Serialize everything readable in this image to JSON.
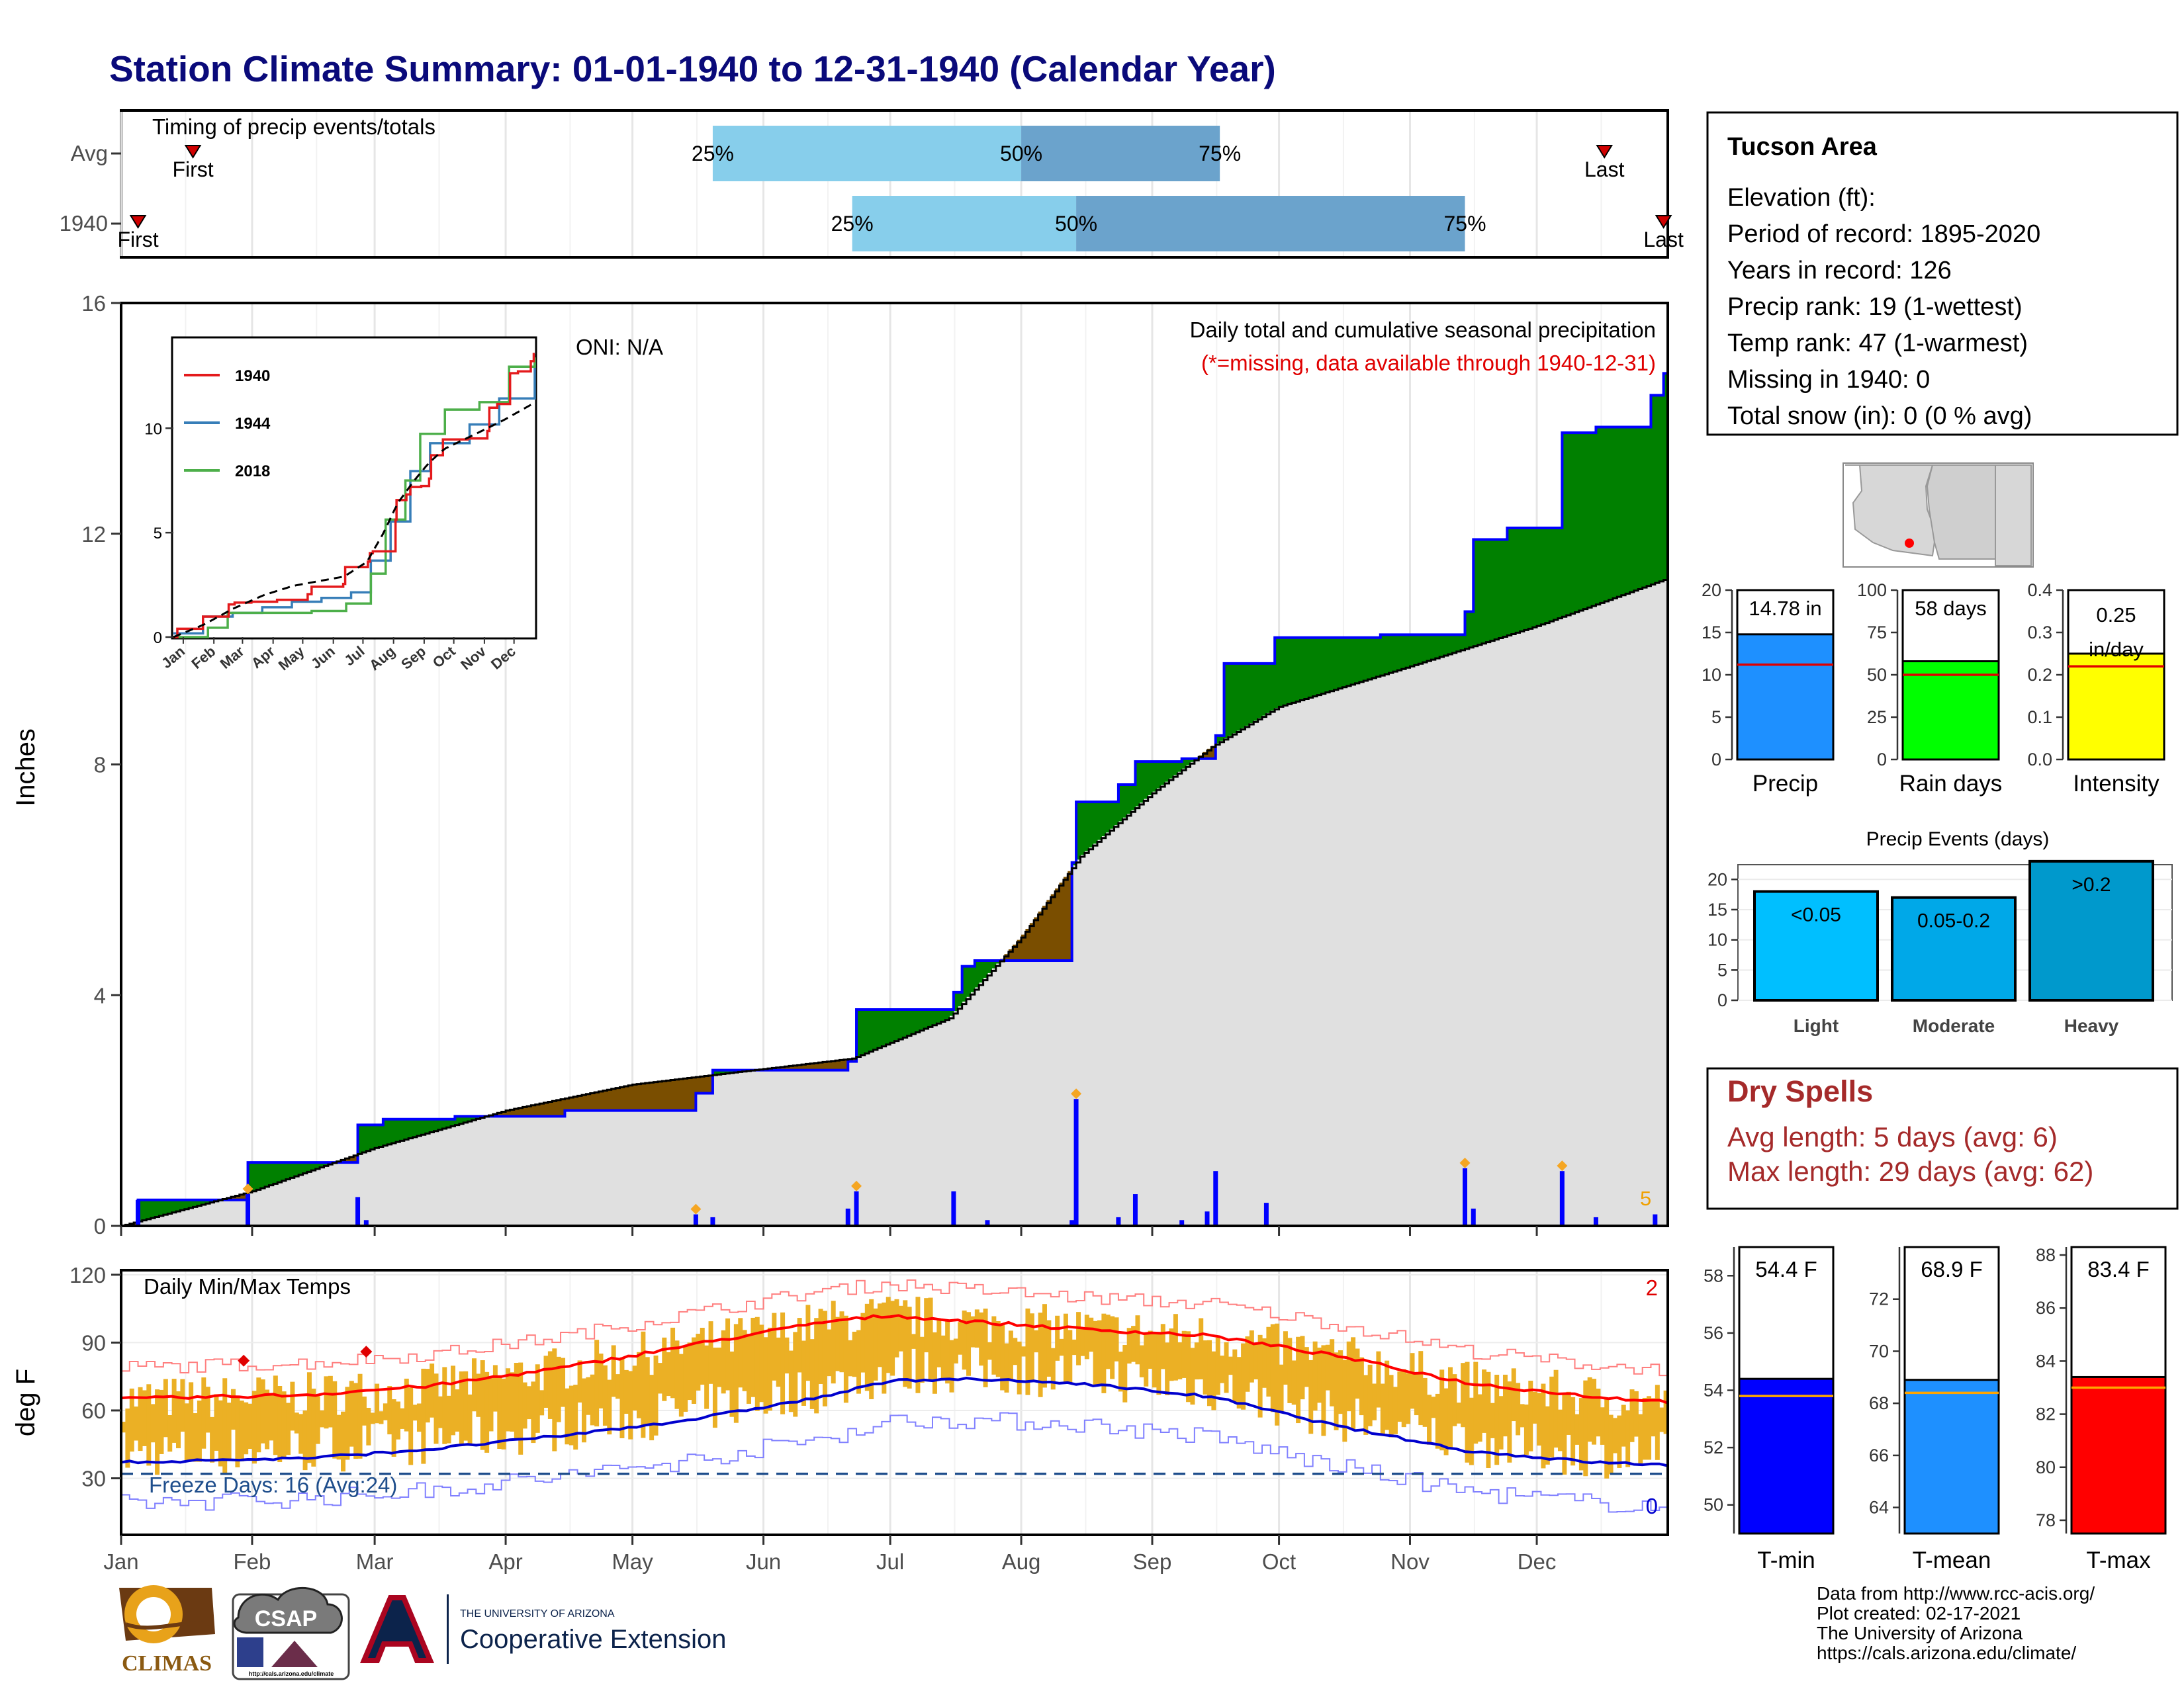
{
  "title": "Station Climate Summary: 01-01-1940 to 12-31-1940 (Calendar Year)",
  "colors": {
    "title": "#0a0a7a",
    "bar_light": "#87ceeb",
    "bar_dark": "#6ba3cc",
    "surplus": "#008000",
    "deficit": "#7a4e00",
    "normal_fill": "#e0e0e0",
    "cumulative_line": "#0000ff",
    "daily_bar": "#0000ff",
    "temp_bar": "#ebb025",
    "tmax_line": "#ff0000",
    "tmin_line": "#0000cd",
    "dry_spells": "#a52a2a"
  },
  "timing": {
    "title": "Timing of precip events/totals",
    "rows": [
      {
        "label": "Avg",
        "first_label": "First",
        "last_label": "Last",
        "first_date": "1940-01-18",
        "last_date": "1940-12-17",
        "q25_label": "25%",
        "q50_label": "50%",
        "q75_label": "75%",
        "q25_date": "1940-05-20",
        "q50_date": "1940-08-01",
        "q75_date": "1940-09-17"
      },
      {
        "label": "1940",
        "first_label": "First",
        "last_label": "Last",
        "first_date": "1940-01-05",
        "last_date": "1940-12-31",
        "q25_label": "25%",
        "q50_label": "50%",
        "q75_label": "75%",
        "q25_date": "1940-06-22",
        "q50_date": "1940-08-14",
        "q75_date": "1940-11-14"
      }
    ]
  },
  "precip_panel": {
    "ylabel": "Inches",
    "oni": "ONI: N/A",
    "note": "Daily total and cumulative seasonal precipitation",
    "missing_note": "(*=missing, data available through 1940-12-31)",
    "missing_count": "5",
    "yticks": [
      "0",
      "4",
      "8",
      "12",
      "16"
    ]
  },
  "months": [
    "Jan",
    "Feb",
    "Mar",
    "Apr",
    "May",
    "Jun",
    "Jul",
    "Aug",
    "Sep",
    "Oct",
    "Nov",
    "Dec"
  ],
  "inset": {
    "xticks": [
      "Jan",
      "Feb",
      "Mar",
      "Apr",
      "May",
      "Jun",
      "Jul",
      "Aug",
      "Sep",
      "Oct",
      "Nov",
      "Dec"
    ],
    "yticks": [
      "0",
      "5",
      "10"
    ],
    "legend": [
      {
        "name": "1940",
        "color": "#e41a1c"
      },
      {
        "name": "1944",
        "color": "#377eb8"
      },
      {
        "name": "2018",
        "color": "#4daf4a"
      }
    ]
  },
  "temp_panel": {
    "ylabel": "deg F",
    "title": "Daily Min/Max Temps",
    "freeze": "Freeze Days: 16 (Avg:24)",
    "record_high_count": "2",
    "record_low_count": "0",
    "yticks": [
      "30",
      "60",
      "90",
      "120"
    ]
  },
  "info": {
    "station": "Tucson Area",
    "lines": [
      "Elevation (ft):",
      "Period of record: 1895-2020",
      "Years in record: 126",
      "Precip rank: 19 (1-wettest)",
      "Temp rank: 47 (1-warmest)",
      "Missing in 1940: 0",
      "Total snow (in): 0 (0 % avg)"
    ]
  },
  "mini_bars": [
    {
      "label": "Precip",
      "value_label": "14.78 in",
      "value": 14.78,
      "avg": 11.2,
      "ymax": 20,
      "ticks": [
        "0",
        "5",
        "10",
        "15",
        "20"
      ],
      "color": "#1e90ff"
    },
    {
      "label": "Rain days",
      "value_label": "58 days",
      "value": 58,
      "avg": 50,
      "ymax": 100,
      "ticks": [
        "0",
        "25",
        "50",
        "75",
        "100"
      ],
      "color": "#00ff00"
    },
    {
      "label": "Intensity",
      "value_label": "0.25 in/day",
      "value_line1": "0.25",
      "value_line2": "in/day",
      "value": 0.25,
      "avg": 0.22,
      "ymax": 0.4,
      "ticks": [
        "0.0",
        "0.1",
        "0.2",
        "0.3",
        "0.4"
      ],
      "color": "#ffff00"
    }
  ],
  "events": {
    "title": "Precip Events (days)",
    "ticks": [
      "0",
      "5",
      "10",
      "15",
      "20"
    ],
    "bars": [
      {
        "category": "Light",
        "label": "<0.05",
        "value": 18,
        "color": "#00bfff"
      },
      {
        "category": "Moderate",
        "label": "0.05-0.2",
        "value": 17,
        "color": "#00a8e8"
      },
      {
        "category": "Heavy",
        "label": ">0.2",
        "value": 23,
        "color": "#0099cc"
      }
    ]
  },
  "dry_spells": {
    "title": "Dry Spells",
    "line1": "Avg length: 5 days (avg: 6)",
    "line2": "Max length: 29 days (avg: 62)"
  },
  "temp_bars": [
    {
      "label": "T-min",
      "value_label": "54.4 F",
      "value": 54.4,
      "avg": 53.8,
      "ymin": 49,
      "ymax": 59,
      "ticks": [
        "50",
        "52",
        "54",
        "56",
        "58"
      ],
      "color": "#0000ff"
    },
    {
      "label": "T-mean",
      "value_label": "68.9 F",
      "value": 68.9,
      "avg": 68.4,
      "ymin": 63,
      "ymax": 74,
      "ticks": [
        "64",
        "66",
        "68",
        "70",
        "72"
      ],
      "color": "#1e90ff"
    },
    {
      "label": "T-max",
      "value_label": "83.4 F",
      "value": 83.4,
      "avg": 83.0,
      "ymin": 77.5,
      "ymax": 88.3,
      "ticks": [
        "78",
        "80",
        "82",
        "84",
        "86",
        "88"
      ],
      "color": "#ff0000"
    }
  ],
  "logos": {
    "climas": "CLIMAS",
    "csap": "CSAP",
    "csap_url": "http://cals.arizona.edu/climate",
    "ua_small": "THE UNIVERSITY OF ARIZONA",
    "ua_big": "Cooperative Extension"
  },
  "credits": [
    "Data from http://www.rcc-acis.org/",
    "Plot created: 02-17-2021",
    "The University of Arizona",
    "https://cals.arizona.edu/climate/"
  ],
  "chart_data": [
    {
      "type": "line",
      "title": "Daily total and cumulative seasonal precipitation",
      "ylabel": "Inches",
      "ylim": [
        0,
        16
      ],
      "series": [
        {
          "name": "1940",
          "x": [
            "1940-01-01",
            "1940-01-05",
            "1940-01-31",
            "1940-02-26",
            "1940-03-03",
            "1940-03-20",
            "1940-04-15",
            "1940-05-16",
            "1940-05-20",
            "1940-06-21",
            "1940-06-23",
            "1940-07-16",
            "1940-07-18",
            "1940-07-21",
            "1940-08-13",
            "1940-08-14",
            "1940-08-24",
            "1940-08-28",
            "1940-09-08",
            "1940-09-16",
            "1940-09-18",
            "1940-09-30",
            "1940-10-25",
            "1940-11-14",
            "1940-11-16",
            "1940-11-24",
            "1940-12-07",
            "1940-12-15",
            "1940-12-28",
            "1940-12-31"
          ],
          "values": [
            0,
            0.45,
            1.1,
            1.75,
            1.85,
            1.9,
            2.0,
            2.3,
            2.7,
            2.85,
            3.75,
            4.05,
            4.5,
            4.6,
            6.3,
            7.35,
            7.65,
            8.05,
            8.1,
            8.5,
            9.75,
            10.2,
            10.25,
            10.65,
            11.9,
            12.1,
            13.75,
            13.85,
            14.4,
            14.78
          ]
        },
        {
          "name": "Normal (cumulative)",
          "x": [
            "1940-01-01",
            "1940-02-01",
            "1940-03-01",
            "1940-04-01",
            "1940-05-01",
            "1940-06-01",
            "1940-06-22",
            "1940-07-15",
            "1940-08-01",
            "1940-08-15",
            "1940-09-01",
            "1940-09-15",
            "1940-10-01",
            "1940-11-01",
            "1940-12-01",
            "1940-12-31"
          ],
          "values": [
            0,
            0.6,
            1.35,
            2.0,
            2.45,
            2.72,
            2.9,
            3.6,
            5.0,
            6.4,
            7.5,
            8.3,
            9.0,
            9.7,
            10.4,
            11.2
          ]
        }
      ],
      "daily_totals": [
        {
          "date": "1940-01-05",
          "value": 0.45
        },
        {
          "date": "1940-01-31",
          "value": 0.55
        },
        {
          "date": "1940-02-26",
          "value": 0.5
        },
        {
          "date": "1940-02-28",
          "value": 0.1
        },
        {
          "date": "1940-05-16",
          "value": 0.2
        },
        {
          "date": "1940-05-20",
          "value": 0.15
        },
        {
          "date": "1940-06-21",
          "value": 0.3
        },
        {
          "date": "1940-06-23",
          "value": 0.6
        },
        {
          "date": "1940-07-16",
          "value": 0.6
        },
        {
          "date": "1940-07-24",
          "value": 0.1
        },
        {
          "date": "1940-08-13",
          "value": 0.1
        },
        {
          "date": "1940-08-14",
          "value": 2.2
        },
        {
          "date": "1940-08-24",
          "value": 0.15
        },
        {
          "date": "1940-08-28",
          "value": 0.55
        },
        {
          "date": "1940-09-08",
          "value": 0.1
        },
        {
          "date": "1940-09-14",
          "value": 0.25
        },
        {
          "date": "1940-09-16",
          "value": 0.95
        },
        {
          "date": "1940-09-28",
          "value": 0.4
        },
        {
          "date": "1940-11-14",
          "value": 1.0
        },
        {
          "date": "1940-11-16",
          "value": 0.3
        },
        {
          "date": "1940-12-07",
          "value": 0.95
        },
        {
          "date": "1940-12-15",
          "value": 0.15
        },
        {
          "date": "1940-12-29",
          "value": 0.2
        }
      ]
    },
    {
      "type": "line",
      "title": "Daily Min/Max Temps",
      "ylabel": "deg F",
      "ylim": [
        5,
        122
      ],
      "series": [
        {
          "name": "Avg max",
          "x": [
            "1940-01-01",
            "1940-02-15",
            "1940-03-15",
            "1940-04-15",
            "1940-05-15",
            "1940-06-15",
            "1940-07-01",
            "1940-07-15",
            "1940-08-15",
            "1940-09-15",
            "1940-10-15",
            "1940-11-15",
            "1940-12-15",
            "1940-12-31"
          ],
          "values": [
            65,
            67,
            71,
            79,
            89,
            99,
            102,
            100,
            96,
            93,
            84,
            72,
            66,
            64
          ]
        },
        {
          "name": "Avg min",
          "x": [
            "1940-01-01",
            "1940-02-15",
            "1940-03-15",
            "1940-04-15",
            "1940-05-15",
            "1940-06-15",
            "1940-07-01",
            "1940-07-15",
            "1940-08-15",
            "1940-09-15",
            "1940-10-15",
            "1940-11-15",
            "1940-12-15",
            "1940-12-31"
          ],
          "values": [
            37,
            39,
            43,
            49,
            56,
            66,
            73,
            74,
            72,
            66,
            53,
            42,
            37,
            36
          ]
        },
        {
          "name": "Freeze line",
          "x": [
            "1940-01-01",
            "1940-12-31"
          ],
          "values": [
            32,
            32
          ]
        }
      ],
      "record_highs": [
        {
          "date": "1940-01-30",
          "value": 82
        },
        {
          "date": "1940-02-28",
          "value": 86
        }
      ]
    },
    {
      "type": "bar",
      "categories": [
        "Light",
        "Moderate",
        "Heavy"
      ],
      "values": [
        18,
        17,
        23
      ],
      "title": "Precip Events (days)",
      "ylim": [
        0,
        22
      ]
    }
  ]
}
